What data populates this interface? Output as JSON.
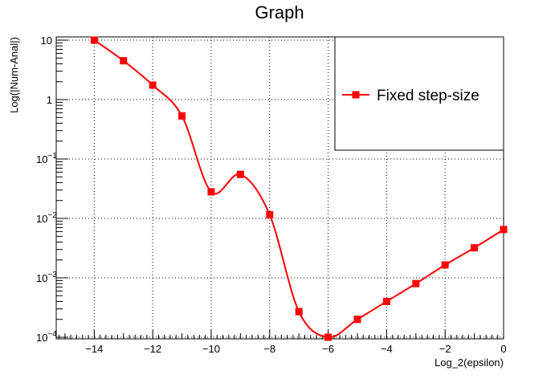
{
  "chart_data": {
    "type": "line",
    "title": "Graph",
    "xlabel": "Log_2(epsilon)",
    "ylabel": "Log(|Num-Anal|)",
    "xlim": [
      -15.3,
      0
    ],
    "ylim": [
      0.0001,
      10
    ],
    "yscale": "log",
    "grid": true,
    "x_ticks": [
      -14,
      -12,
      -10,
      -8,
      -6,
      -4,
      -2,
      0
    ],
    "x_tick_labels": [
      "−14",
      "−12",
      "−10",
      "−8",
      "−6",
      "−4",
      "−2",
      "0"
    ],
    "y_ticks": [
      {
        "value": 10,
        "label": "10"
      },
      {
        "value": 1,
        "label": "1"
      },
      {
        "value": 0.1,
        "base": "10",
        "exp": "−1"
      },
      {
        "value": 0.01,
        "base": "10",
        "exp": "−2"
      },
      {
        "value": 0.001,
        "base": "10",
        "exp": "−3"
      },
      {
        "value": 0.0001,
        "base": "10",
        "exp": "−4"
      }
    ],
    "legend_position": "top-right",
    "series": [
      {
        "name": "Fixed step-size",
        "color": "#ff0000",
        "marker": "square",
        "x": [
          -14,
          -13,
          -12,
          -11,
          -10,
          -9,
          -8,
          -7,
          -6,
          -5,
          -4,
          -3,
          -2,
          -1,
          0
        ],
        "y": [
          10.0,
          4.5,
          1.75,
          0.53,
          0.028,
          0.055,
          0.0115,
          0.00027,
          0.0001,
          0.0002,
          0.0004,
          0.0008,
          0.00165,
          0.0032,
          0.0065
        ]
      }
    ]
  }
}
